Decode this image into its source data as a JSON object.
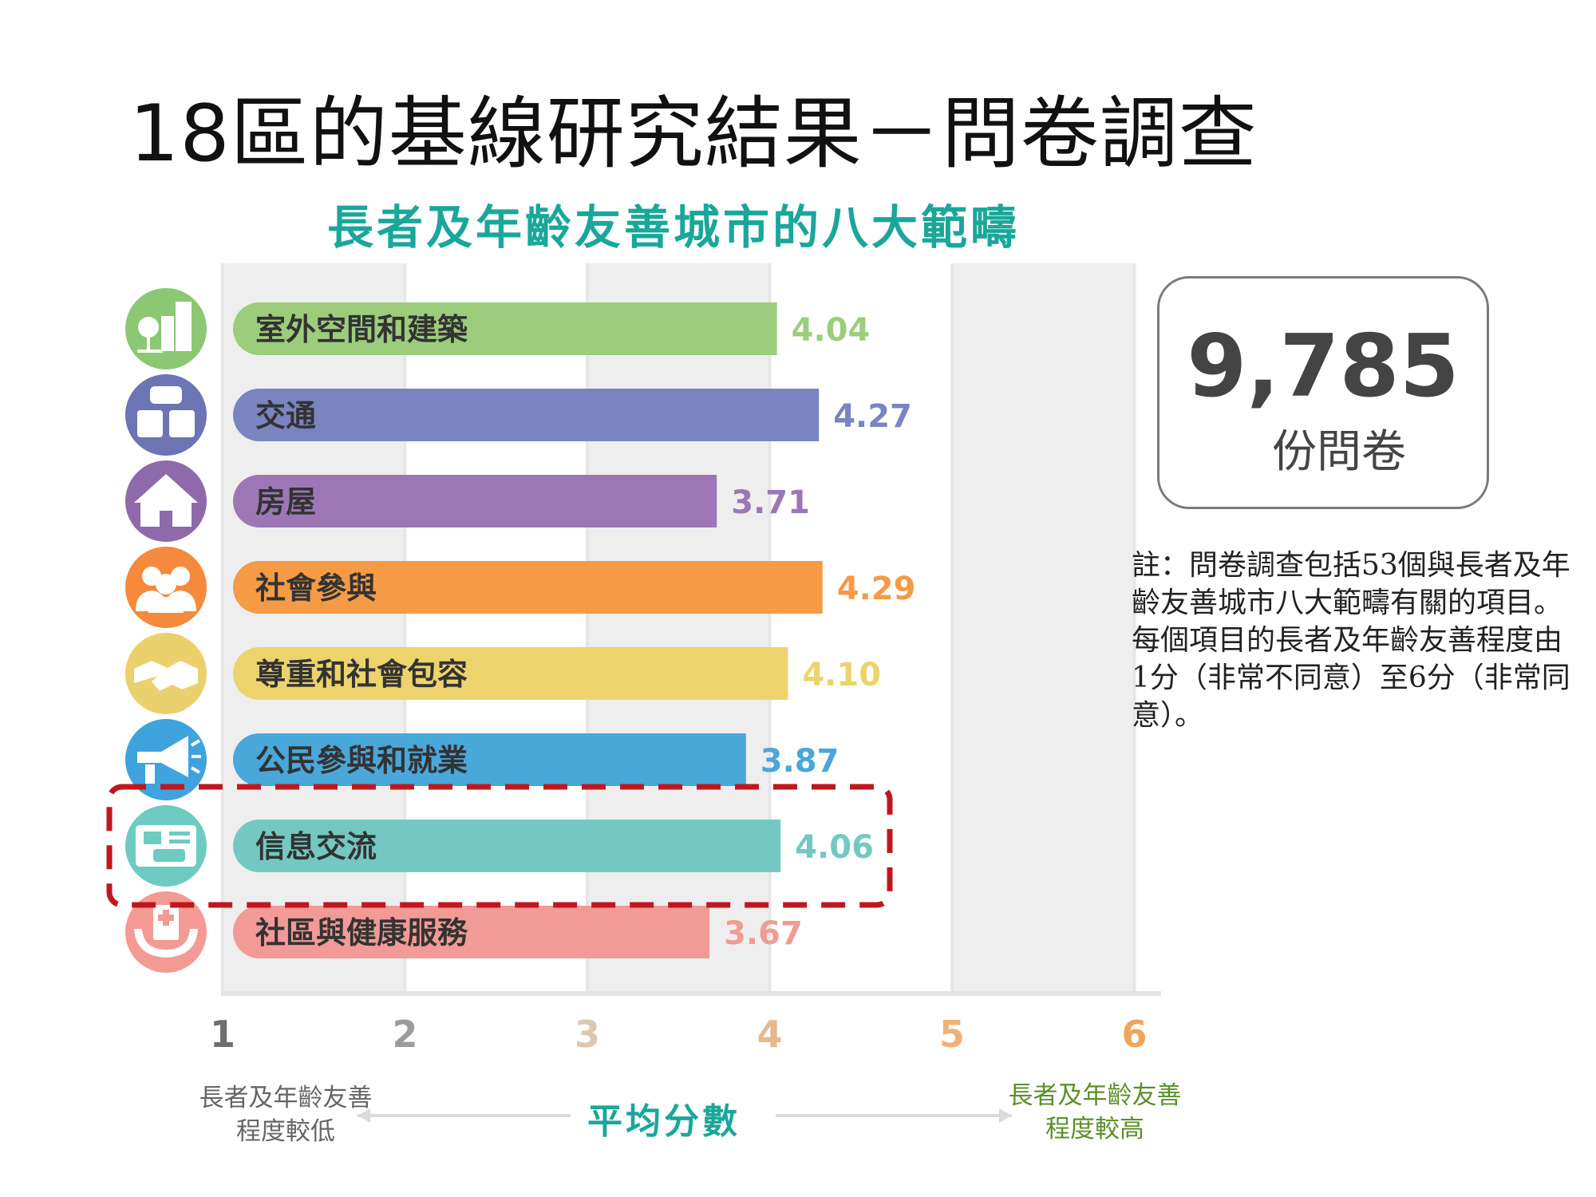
{
  "page": {
    "title": "18區的基線研究結果－問卷調查"
  },
  "summary": {
    "count": "9,785",
    "count_label": "份問卷",
    "note": "註：問卷調查包括53個與長者及年齡友善城市八大範疇有關的項目。每個項目的長者及年齡友善程度由1分（非常不同意）至6分（非常同意）。"
  },
  "chart_data": {
    "type": "bar",
    "orientation": "horizontal",
    "title": "長者及年齡友善城市的八大範疇",
    "categories": [
      "室外空間和建築",
      "交通",
      "房屋",
      "社會參與",
      "尊重和社會包容",
      "公民參與和就業",
      "信息交流",
      "社區與健康服務"
    ],
    "values": [
      4.04,
      4.27,
      3.71,
      4.29,
      4.1,
      3.87,
      4.06,
      3.67
    ],
    "value_labels": [
      "4.04",
      "4.27",
      "3.71",
      "4.29",
      "4.10",
      "3.87",
      "4.06",
      "3.67"
    ],
    "icons": [
      "buildings-park-icon",
      "car-bus-icon",
      "house-icon",
      "people-group-icon",
      "handshake-icon",
      "megaphone-icon",
      "news-chat-icon",
      "hospital-hands-icon"
    ],
    "colors": [
      "#9ccd7c",
      "#7a84c1",
      "#9d77b5",
      "#f59a45",
      "#ecd36c",
      "#4aa7d9",
      "#73c9c2",
      "#f29a96"
    ],
    "icon_colors": [
      "#8cc873",
      "#6c74b4",
      "#8e6aab",
      "#f5893c",
      "#ead16d",
      "#3fa3dd",
      "#6ecbc1",
      "#f39a94"
    ],
    "xlim": [
      1,
      6
    ],
    "ticks": [
      "1",
      "2",
      "3",
      "4",
      "5",
      "6"
    ],
    "tick_colors": [
      "#6e6e6e",
      "#9b9b9b",
      "#dcc7b0",
      "#e6b98c",
      "#f0b27a",
      "#f0a55a"
    ],
    "xlabel": "平均分數",
    "low_label": [
      "長者及年齡友善",
      "程度較低"
    ],
    "high_label": [
      "長者及年齡友善",
      "程度較高"
    ],
    "highlight_index": 6,
    "highlight_color": "#c0171e",
    "title_color": "#1aa79a",
    "high_label_color": "#5c8f2a"
  }
}
